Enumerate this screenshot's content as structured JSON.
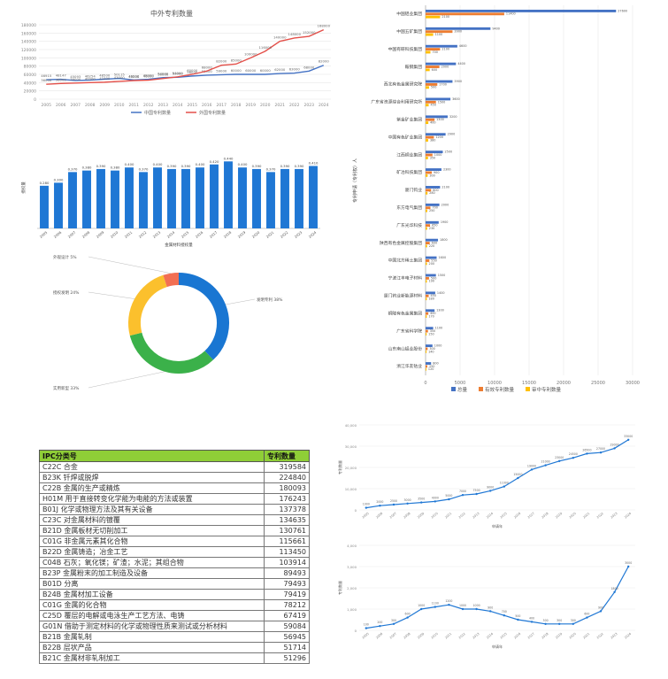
{
  "chart_data": [
    {
      "type": "line",
      "title": "中外专利数量",
      "categories": [
        "2005",
        "2006",
        "2007",
        "2008",
        "2009",
        "2010",
        "2011",
        "2012",
        "2013",
        "2014",
        "2015",
        "2016",
        "2017",
        "2018",
        "2019",
        "2020",
        "2021",
        "2022",
        "2023",
        "2024"
      ],
      "series": [
        {
          "name": "中国专利数量",
          "color": "#4472c4",
          "values": [
            46915,
            48147,
            45093,
            46254,
            48500,
            50115,
            46506,
            48000,
            52000,
            53000,
            56000,
            58000,
            59000,
            60000,
            60000,
            60000,
            62000,
            63000,
            68000,
            82000
          ]
        },
        {
          "name": "外国专利数量",
          "color": "#e4504a",
          "values": [
            36000,
            38000,
            39000,
            40000,
            41000,
            43000,
            45000,
            46000,
            50000,
            54000,
            60000,
            68000,
            82000,
            85000,
            100000,
            116000,
            140000,
            148000,
            152000,
            168000
          ]
        }
      ],
      "ylim": [
        0,
        180000
      ],
      "yticks": [
        "0",
        "20000",
        "40000",
        "60000",
        "80000",
        "100000",
        "120000",
        "140000",
        "160000",
        "180000"
      ],
      "legend": "bottom"
    },
    {
      "type": "bar",
      "color": "#1f77d4",
      "xlabel": "金属材料授权量",
      "ylabel": "授权量",
      "categories": [
        "2005",
        "2006",
        "2007",
        "2008",
        "2009",
        "2010",
        "2011",
        "2012",
        "2013",
        "2014",
        "2015",
        "2016",
        "2017",
        "2018",
        "2019",
        "2020",
        "2021",
        "2022",
        "2023",
        "2024"
      ],
      "values": [
        0.28,
        0.3,
        0.37,
        0.38,
        0.39,
        0.38,
        0.4,
        0.37,
        0.4,
        0.39,
        0.39,
        0.4,
        0.42,
        0.44,
        0.4,
        0.39,
        0.37,
        0.39,
        0.39,
        0.41
      ],
      "labels": [
        "0.280",
        "0.300",
        "0.370",
        "0.380",
        "0.390",
        "0.380",
        "0.400",
        "0.370",
        "0.400",
        "0.390",
        "0.390",
        "0.400",
        "0.420",
        "0.440",
        "0.400",
        "0.390",
        "0.370",
        "0.390",
        "0.390",
        "0.410"
      ],
      "ylim": [
        0,
        0.5
      ]
    },
    {
      "type": "pie",
      "style": "donut",
      "slices": [
        {
          "name": "发明专利",
          "value": 38,
          "color": "#1976d2",
          "label": "发明专利 38%"
        },
        {
          "name": "实用新型",
          "value": 33,
          "color": "#3bb14a",
          "label": "实用新型 33%"
        },
        {
          "name": "授权发明",
          "value": 24,
          "color": "#fbc02d",
          "label": "授权发明 24%"
        },
        {
          "name": "外观设计",
          "value": 5,
          "color": "#f26f53",
          "label": "外观设计 5%"
        }
      ]
    },
    {
      "type": "bar",
      "orientation": "horizontal",
      "ylabel": "专利申请（专利权）人",
      "categories": [
        "中国铝业集团",
        "中国五矿集团",
        "中国有研科技集团",
        "鞍钢集团",
        "西北有色金属研究院",
        "广东省资源综合利用研究所",
        "紫金矿业集团",
        "中国有色矿业集团",
        "江西铜业集团",
        "矿冶科技集团",
        "厦门钨业",
        "东方电气集团",
        "广东光华科技",
        "陕西有色金属控股集团",
        "中国北方稀土集团",
        "宁波江丰电子材料",
        "厦门钨业新能源材料",
        "铜陵有色金属集团",
        "广东省科学院",
        "山东南山铝业股份",
        "浙江华友钴业"
      ],
      "series": [
        {
          "name": "总量",
          "color": "#4472c4",
          "values": [
            27600,
            9400,
            4600,
            4400,
            3900,
            3600,
            3200,
            2900,
            2500,
            2300,
            2100,
            2000,
            1900,
            1800,
            1600,
            1500,
            1400,
            1300,
            1100,
            1000,
            800
          ]
        },
        {
          "name": "有效专利数量",
          "color": "#ed7d31",
          "values": [
            11400,
            3900,
            2100,
            2000,
            1700,
            1500,
            1300,
            1200,
            1000,
            900,
            800,
            700,
            650,
            600,
            550,
            500,
            450,
            400,
            350,
            300,
            250
          ]
        },
        {
          "name": "审中专利数量",
          "color": "#ffc000",
          "values": [
            2100,
            1100,
            700,
            600,
            500,
            450,
            400,
            380,
            350,
            300,
            280,
            250,
            230,
            220,
            200,
            190,
            180,
            170,
            150,
            140,
            120
          ]
        }
      ],
      "xlim": [
        0,
        30000
      ],
      "xticks": [
        "0",
        "5000",
        "10000",
        "15000",
        "20000",
        "25000",
        "30000"
      ],
      "legend": "bottom"
    },
    {
      "type": "line",
      "categories": [
        "2005",
        "2006",
        "2007",
        "2008",
        "2009",
        "2010",
        "2011",
        "2012",
        "2013",
        "2014",
        "2015",
        "2016",
        "2017",
        "2018",
        "2019",
        "2020",
        "2021",
        "2022",
        "2023",
        "2024"
      ],
      "values": [
        1000,
        2000,
        2500,
        3000,
        3500,
        4000,
        5000,
        7000,
        7500,
        9000,
        11000,
        15000,
        19000,
        21000,
        23000,
        24500,
        26500,
        27000,
        29000,
        33000
      ],
      "ylim": [
        0,
        40000
      ],
      "yticks": [
        "0",
        "10,000",
        "20,000",
        "30,000",
        "40,000"
      ],
      "xlabel": "申请年",
      "ylabel": "专利数量",
      "color": "#1f77d4"
    },
    {
      "type": "line",
      "categories": [
        "2005",
        "2006",
        "2007",
        "2008",
        "2009",
        "2010",
        "2011",
        "2012",
        "2013",
        "2014",
        "2015",
        "2016",
        "2017",
        "2018",
        "2019",
        "2020",
        "2021",
        "2022",
        "2023",
        "2024"
      ],
      "values": [
        100,
        200,
        300,
        600,
        1000,
        1100,
        1200,
        1000,
        1000,
        900,
        700,
        500,
        400,
        300,
        300,
        300,
        600,
        900,
        1800,
        3000
      ],
      "ylim": [
        0,
        4000
      ],
      "yticks": [
        "0",
        "1,000",
        "2,000",
        "3,000",
        "4,000"
      ],
      "xlabel": "申请年",
      "ylabel": "专利数量",
      "color": "#1f77d4"
    },
    {
      "type": "table",
      "columns": [
        "IPC分类号",
        "专利数量"
      ],
      "rows": [
        [
          "C22C 合金",
          "319584"
        ],
        [
          "B23K 钎焊或脱焊",
          "224840"
        ],
        [
          "C22B 金属的生产或精炼",
          "180093"
        ],
        [
          "H01M 用于直接转变化学能为电能的方法或装置",
          "176243"
        ],
        [
          "B01J 化学或物理方法及其有关设备",
          "137378"
        ],
        [
          "C23C 对金属材料的镀覆",
          "134635"
        ],
        [
          "B21D 金属板材无切削加工",
          "130761"
        ],
        [
          "C01G 非金属元素其化合物",
          "115661"
        ],
        [
          "B22D 金属铸造；冶金工艺",
          "113450"
        ],
        [
          "C04B 石灰；氧化镁；矿渣；水泥；其组合物",
          "103914"
        ],
        [
          "B23P 金属粉末的加工制造及设备",
          "89493"
        ],
        [
          "B01D 分离",
          "79493"
        ],
        [
          "B24B 金属材加工设备",
          "79419"
        ],
        [
          "C01G 金属的化合物",
          "78212"
        ],
        [
          "C25D 覆层的电解或电泳生产工艺方法、电铸",
          "67419"
        ],
        [
          "G01N 借助于测定材料的化学或物理性质来测试或分析材料",
          "59084"
        ],
        [
          "B21B 金属轧制",
          "56945"
        ],
        [
          "B22B 层状产品",
          "51714"
        ],
        [
          "B21C 金属材非轧制加工",
          "51296"
        ]
      ]
    }
  ]
}
